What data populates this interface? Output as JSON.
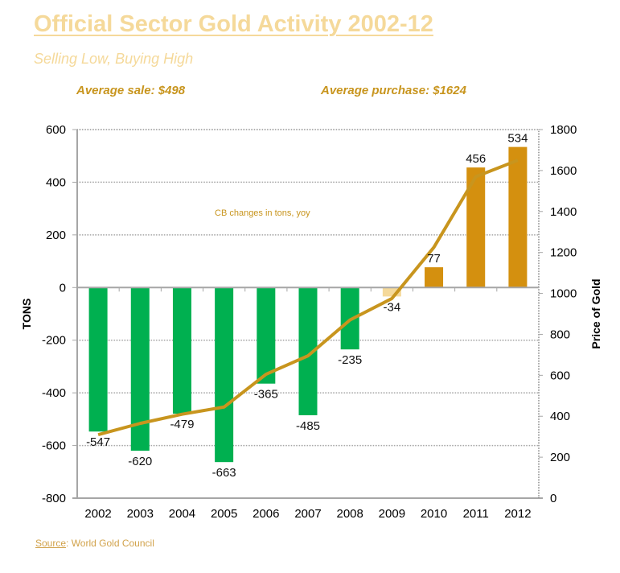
{
  "header": {
    "title": "Official Sector Gold Activity 2002-12",
    "subtitle": "Selling Low, Buying High",
    "avg_sale": "Average sale: $498",
    "avg_purchase": "Average purchase: $1624"
  },
  "footer": {
    "source_label": "Source",
    "source_text": ": World Gold Council"
  },
  "colors": {
    "sale_bar": "#00b050",
    "purchase_bar": "#d4900f",
    "small_bar": "#f5d99a",
    "price_line": "#c8951e",
    "grid": "#a6a6a6"
  },
  "chart_data": {
    "type": "bar",
    "title": "Official Sector Gold Activity 2002-12",
    "subtitle": "Selling Low, Buying High",
    "annotation": "CB changes in tons, yoy",
    "categories": [
      "2002",
      "2003",
      "2004",
      "2005",
      "2006",
      "2007",
      "2008",
      "2009",
      "2010",
      "2011",
      "2012"
    ],
    "series": [
      {
        "name": "CB changes in tons, yoy",
        "type": "bar",
        "axis": "left",
        "values": [
          -547,
          -620,
          -479,
          -663,
          -365,
          -485,
          -235,
          -34,
          77,
          456,
          534
        ],
        "labels": [
          "-547",
          "-620",
          "-479",
          "-663",
          "-365",
          "-485",
          "-235",
          "-34",
          "77",
          "456",
          "534"
        ]
      },
      {
        "name": "Price of Gold",
        "type": "line",
        "axis": "right",
        "values": [
          310,
          365,
          410,
          445,
          605,
          695,
          870,
          975,
          1225,
          1570,
          1650
        ]
      }
    ],
    "ylabel": "TONS",
    "ylabel_right": "Price of Gold",
    "ylim": [
      -800,
      600
    ],
    "yticks": [
      "600",
      "400",
      "200",
      "0",
      "-200",
      "-400",
      "-600",
      "-800"
    ],
    "ylim_right": [
      0,
      1800
    ],
    "yticks_right": [
      "1800",
      "1600",
      "1400",
      "1200",
      "1000",
      "800",
      "600",
      "400",
      "200",
      "0"
    ],
    "grid": true,
    "legend": "none"
  }
}
